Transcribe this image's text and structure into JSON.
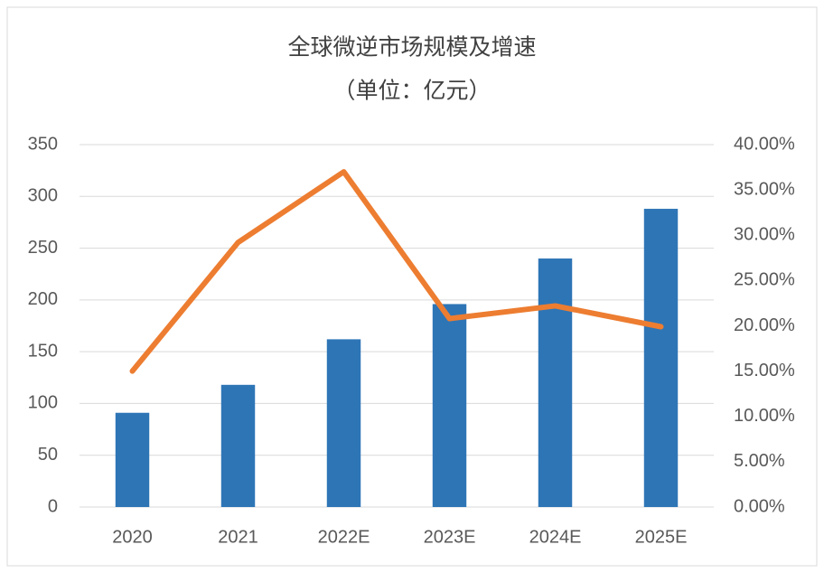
{
  "chart_data": {
    "type": "bar",
    "title": "全球微逆市场规模及增速",
    "subtitle": "（单位：亿元）",
    "categories": [
      "2020",
      "2021",
      "2022E",
      "2023E",
      "2024E",
      "2025E"
    ],
    "series": [
      {
        "type": "bar",
        "color": "#2e75b6",
        "values": [
          91,
          118,
          162,
          196,
          240,
          288
        ]
      },
      {
        "type": "line",
        "axis": "y2",
        "color": "#ed7d31",
        "values": [
          15.0,
          29.2,
          37.0,
          20.8,
          22.2,
          19.9
        ]
      }
    ],
    "ylim": [
      0,
      350
    ],
    "yticks": [
      0,
      50,
      100,
      150,
      200,
      250,
      300,
      350
    ],
    "y2lim": [
      0,
      40
    ],
    "y2ticks": [
      {
        "value": 0,
        "label": "0.00%"
      },
      {
        "value": 5,
        "label": "5.00%"
      },
      {
        "value": 10,
        "label": "10.00%"
      },
      {
        "value": 15,
        "label": "15.00%"
      },
      {
        "value": 20,
        "label": "20.00%"
      },
      {
        "value": 25,
        "label": "25.00%"
      },
      {
        "value": 30,
        "label": "30.00%"
      },
      {
        "value": 35,
        "label": "35.00%"
      },
      {
        "value": 40,
        "label": "40.00%"
      }
    ],
    "grid": true
  }
}
